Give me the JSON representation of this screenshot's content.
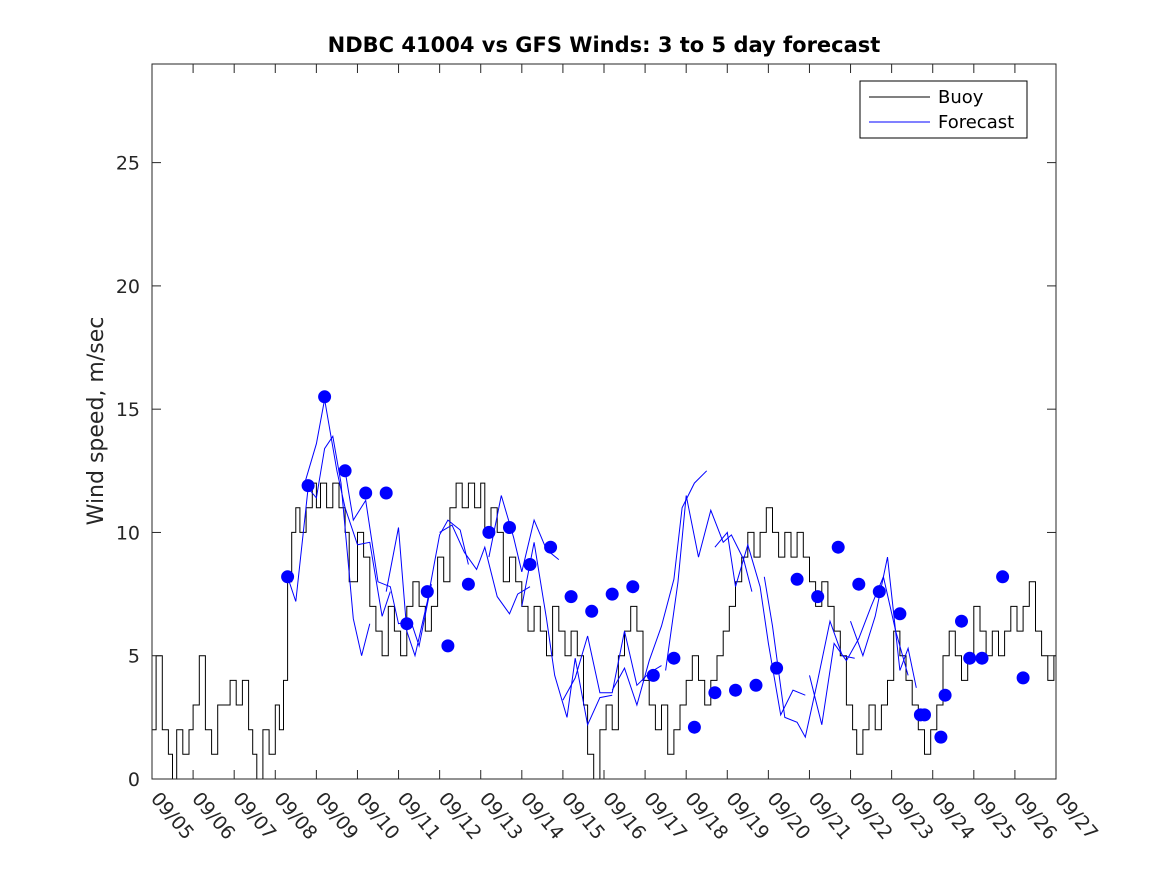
{
  "chart_data": {
    "type": "line",
    "title": "NDBC 41004 vs GFS Winds: 3 to 5 day forecast",
    "xlabel": "",
    "ylabel": "Wind speed, m/sec",
    "ylim": [
      0,
      29
    ],
    "xlim": [
      "09/05",
      "09/27"
    ],
    "x_ticks": [
      "09/05",
      "09/06",
      "09/07",
      "09/08",
      "09/09",
      "09/10",
      "09/11",
      "09/12",
      "09/13",
      "09/14",
      "09/15",
      "09/16",
      "09/17",
      "09/18",
      "09/19",
      "09/20",
      "09/21",
      "09/22",
      "09/23",
      "09/24",
      "09/25",
      "09/26",
      "09/27"
    ],
    "y_ticks": [
      0,
      5,
      10,
      15,
      20,
      25
    ],
    "grid": false,
    "legend_position": "top-right",
    "legend": [
      "Buoy",
      "Forecast"
    ],
    "colors": {
      "buoy": "#000000",
      "forecast": "#0000ff",
      "marker": "#0000ff"
    },
    "buoy": {
      "name": "Buoy",
      "points": [
        [
          0.0,
          2
        ],
        [
          0.1,
          5
        ],
        [
          0.25,
          2
        ],
        [
          0.4,
          1
        ],
        [
          0.5,
          0
        ],
        [
          0.6,
          2
        ],
        [
          0.75,
          1
        ],
        [
          0.9,
          2
        ],
        [
          1.0,
          3
        ],
        [
          1.15,
          5
        ],
        [
          1.3,
          2
        ],
        [
          1.45,
          1
        ],
        [
          1.6,
          3
        ],
        [
          1.75,
          3
        ],
        [
          1.9,
          4
        ],
        [
          2.05,
          3
        ],
        [
          2.2,
          4
        ],
        [
          2.35,
          2
        ],
        [
          2.45,
          1
        ],
        [
          2.55,
          0
        ],
        [
          2.7,
          2
        ],
        [
          2.85,
          1
        ],
        [
          3.0,
          3
        ],
        [
          3.1,
          2
        ],
        [
          3.2,
          4
        ],
        [
          3.3,
          8
        ],
        [
          3.4,
          10
        ],
        [
          3.5,
          11
        ],
        [
          3.6,
          10
        ],
        [
          3.75,
          11
        ],
        [
          3.9,
          12
        ],
        [
          4.0,
          11
        ],
        [
          4.1,
          12
        ],
        [
          4.25,
          11
        ],
        [
          4.4,
          12
        ],
        [
          4.55,
          11
        ],
        [
          4.7,
          10
        ],
        [
          4.8,
          8
        ],
        [
          5.0,
          10
        ],
        [
          5.15,
          9
        ],
        [
          5.3,
          7
        ],
        [
          5.45,
          6
        ],
        [
          5.6,
          5
        ],
        [
          5.75,
          7
        ],
        [
          5.9,
          6
        ],
        [
          6.05,
          5
        ],
        [
          6.2,
          7
        ],
        [
          6.35,
          8
        ],
        [
          6.5,
          7
        ],
        [
          6.65,
          6
        ],
        [
          6.8,
          7
        ],
        [
          6.95,
          9
        ],
        [
          7.1,
          8
        ],
        [
          7.25,
          11
        ],
        [
          7.4,
          12
        ],
        [
          7.55,
          11
        ],
        [
          7.7,
          12
        ],
        [
          7.85,
          11
        ],
        [
          8.0,
          12
        ],
        [
          8.1,
          10
        ],
        [
          8.25,
          11
        ],
        [
          8.4,
          10
        ],
        [
          8.55,
          8
        ],
        [
          8.7,
          9
        ],
        [
          8.85,
          8
        ],
        [
          9.0,
          7
        ],
        [
          9.15,
          6
        ],
        [
          9.3,
          7
        ],
        [
          9.45,
          6
        ],
        [
          9.6,
          5
        ],
        [
          9.75,
          7
        ],
        [
          9.9,
          6
        ],
        [
          10.05,
          5
        ],
        [
          10.2,
          6
        ],
        [
          10.35,
          5
        ],
        [
          10.5,
          3
        ],
        [
          10.6,
          1
        ],
        [
          10.75,
          0
        ],
        [
          10.9,
          2
        ],
        [
          11.05,
          3
        ],
        [
          11.2,
          2
        ],
        [
          11.35,
          5
        ],
        [
          11.5,
          6
        ],
        [
          11.65,
          7
        ],
        [
          11.8,
          6
        ],
        [
          11.95,
          4
        ],
        [
          12.1,
          3
        ],
        [
          12.25,
          2
        ],
        [
          12.4,
          3
        ],
        [
          12.55,
          1
        ],
        [
          12.7,
          2
        ],
        [
          12.85,
          3
        ],
        [
          13.0,
          4
        ],
        [
          13.15,
          5
        ],
        [
          13.3,
          4
        ],
        [
          13.45,
          3
        ],
        [
          13.6,
          4
        ],
        [
          13.75,
          5
        ],
        [
          13.9,
          6
        ],
        [
          14.05,
          7
        ],
        [
          14.2,
          8
        ],
        [
          14.35,
          9
        ],
        [
          14.5,
          10
        ],
        [
          14.65,
          9
        ],
        [
          14.8,
          10
        ],
        [
          14.95,
          11
        ],
        [
          15.1,
          10
        ],
        [
          15.25,
          9
        ],
        [
          15.4,
          10
        ],
        [
          15.55,
          9
        ],
        [
          15.7,
          10
        ],
        [
          15.85,
          9
        ],
        [
          16.0,
          8
        ],
        [
          16.15,
          7
        ],
        [
          16.3,
          8
        ],
        [
          16.45,
          7
        ],
        [
          16.6,
          6
        ],
        [
          16.75,
          5
        ],
        [
          16.9,
          3
        ],
        [
          17.05,
          2
        ],
        [
          17.15,
          1
        ],
        [
          17.3,
          2
        ],
        [
          17.45,
          3
        ],
        [
          17.6,
          2
        ],
        [
          17.75,
          3
        ],
        [
          17.9,
          4
        ],
        [
          18.05,
          6
        ],
        [
          18.2,
          5
        ],
        [
          18.35,
          4
        ],
        [
          18.5,
          3
        ],
        [
          18.65,
          2
        ],
        [
          18.8,
          1
        ],
        [
          18.95,
          2
        ],
        [
          19.1,
          3
        ],
        [
          19.25,
          5
        ],
        [
          19.4,
          6
        ],
        [
          19.55,
          5
        ],
        [
          19.7,
          4
        ],
        [
          19.85,
          5
        ],
        [
          20.0,
          7
        ],
        [
          20.15,
          6
        ],
        [
          20.3,
          5
        ],
        [
          20.45,
          6
        ],
        [
          20.6,
          5
        ],
        [
          20.75,
          6
        ],
        [
          20.9,
          7
        ],
        [
          21.05,
          6
        ],
        [
          21.2,
          7
        ],
        [
          21.35,
          8
        ],
        [
          21.5,
          6
        ],
        [
          21.65,
          5
        ],
        [
          21.8,
          4
        ],
        [
          21.95,
          5
        ],
        [
          22.0,
          5
        ]
      ]
    },
    "forecast_runs": [
      {
        "name": "Forecast",
        "points": [
          [
            3.3,
            8.2
          ],
          [
            3.5,
            7.2
          ],
          [
            3.8,
            11.8
          ],
          [
            4.0,
            11.4
          ],
          [
            4.2,
            13.4
          ],
          [
            4.4,
            13.9
          ],
          [
            4.6,
            12.0
          ],
          [
            4.9,
            6.5
          ],
          [
            5.1,
            5.0
          ],
          [
            5.3,
            6.3
          ]
        ]
      },
      {
        "name": "Forecast",
        "points": [
          [
            3.7,
            11.9
          ],
          [
            4.0,
            13.6
          ],
          [
            4.2,
            15.4
          ],
          [
            4.5,
            12.5
          ],
          [
            4.7,
            11.0
          ],
          [
            5.0,
            9.5
          ],
          [
            5.3,
            9.6
          ],
          [
            5.6,
            6.6
          ],
          [
            5.8,
            7.6
          ]
        ]
      },
      {
        "name": "Forecast",
        "points": [
          [
            4.7,
            12.5
          ],
          [
            4.9,
            10.5
          ],
          [
            5.2,
            11.3
          ],
          [
            5.5,
            8.0
          ],
          [
            5.8,
            7.8
          ],
          [
            6.0,
            6.3
          ],
          [
            6.3,
            6.4
          ],
          [
            6.5,
            5.4
          ],
          [
            6.8,
            7.9
          ]
        ]
      },
      {
        "name": "Forecast",
        "points": [
          [
            5.7,
            7.6
          ],
          [
            6.0,
            10.2
          ],
          [
            6.2,
            6.0
          ],
          [
            6.4,
            5.0
          ],
          [
            6.7,
            7.2
          ],
          [
            7.0,
            9.9
          ],
          [
            7.2,
            10.5
          ],
          [
            7.5,
            10.1
          ],
          [
            7.7,
            8.7
          ]
        ]
      },
      {
        "name": "Forecast",
        "points": [
          [
            7.0,
            10.0
          ],
          [
            7.3,
            10.3
          ],
          [
            7.6,
            9.2
          ],
          [
            7.9,
            8.5
          ],
          [
            8.1,
            9.4
          ],
          [
            8.4,
            7.4
          ],
          [
            8.7,
            6.7
          ],
          [
            8.9,
            7.5
          ],
          [
            9.2,
            7.8
          ]
        ]
      },
      {
        "name": "Forecast",
        "points": [
          [
            8.2,
            9.0
          ],
          [
            8.5,
            11.5
          ],
          [
            8.8,
            9.8
          ],
          [
            9.0,
            8.4
          ],
          [
            9.3,
            10.5
          ],
          [
            9.6,
            9.3
          ],
          [
            9.9,
            8.9
          ]
        ]
      },
      {
        "name": "Forecast",
        "points": [
          [
            9.0,
            7.0
          ],
          [
            9.3,
            9.6
          ],
          [
            9.6,
            6.5
          ],
          [
            9.8,
            4.2
          ],
          [
            10.1,
            2.5
          ],
          [
            10.3,
            4.9
          ],
          [
            10.6,
            2.2
          ],
          [
            10.9,
            3.3
          ],
          [
            11.2,
            3.4
          ]
        ]
      },
      {
        "name": "Forecast",
        "points": [
          [
            10.0,
            3.2
          ],
          [
            10.3,
            4.1
          ],
          [
            10.6,
            5.8
          ],
          [
            10.9,
            3.5
          ],
          [
            11.2,
            3.5
          ],
          [
            11.5,
            6.0
          ],
          [
            11.8,
            3.8
          ],
          [
            12.1,
            4.3
          ],
          [
            12.4,
            4.6
          ]
        ]
      },
      {
        "name": "Forecast",
        "points": [
          [
            11.2,
            3.6
          ],
          [
            11.5,
            4.5
          ],
          [
            11.8,
            3.0
          ],
          [
            12.1,
            4.8
          ],
          [
            12.4,
            6.2
          ],
          [
            12.7,
            8.1
          ],
          [
            12.9,
            11.0
          ],
          [
            13.2,
            12.0
          ],
          [
            13.5,
            12.5
          ]
        ]
      },
      {
        "name": "Forecast",
        "points": [
          [
            12.5,
            4.4
          ],
          [
            12.8,
            8.0
          ],
          [
            13.0,
            11.5
          ],
          [
            13.3,
            9.0
          ],
          [
            13.6,
            10.9
          ],
          [
            13.9,
            9.6
          ],
          [
            14.1,
            9.9
          ],
          [
            14.4,
            8.9
          ],
          [
            14.6,
            7.6
          ]
        ]
      },
      {
        "name": "Forecast",
        "points": [
          [
            13.7,
            9.4
          ],
          [
            14.0,
            10.0
          ],
          [
            14.2,
            7.8
          ],
          [
            14.5,
            9.5
          ],
          [
            14.8,
            7.8
          ],
          [
            15.0,
            5.5
          ],
          [
            15.3,
            2.6
          ],
          [
            15.6,
            3.6
          ],
          [
            15.9,
            3.4
          ]
        ]
      },
      {
        "name": "Forecast",
        "points": [
          [
            14.9,
            8.2
          ],
          [
            15.1,
            6.2
          ],
          [
            15.4,
            2.5
          ],
          [
            15.7,
            2.3
          ],
          [
            15.9,
            1.7
          ],
          [
            16.2,
            4.0
          ],
          [
            16.5,
            6.4
          ],
          [
            16.8,
            5.0
          ],
          [
            17.1,
            4.9
          ]
        ]
      },
      {
        "name": "Forecast",
        "points": [
          [
            16.0,
            4.2
          ],
          [
            16.3,
            2.2
          ],
          [
            16.6,
            5.5
          ],
          [
            16.9,
            4.8
          ],
          [
            17.2,
            5.7
          ],
          [
            17.5,
            7.0
          ],
          [
            17.8,
            8.2
          ],
          [
            18.1,
            6.0
          ],
          [
            18.4,
            4.2
          ]
        ]
      },
      {
        "name": "Forecast",
        "points": [
          [
            17.0,
            6.4
          ],
          [
            17.3,
            5.0
          ],
          [
            17.6,
            6.6
          ],
          [
            17.9,
            9.0
          ],
          [
            18.2,
            4.4
          ],
          [
            18.4,
            5.3
          ],
          [
            18.6,
            3.7
          ]
        ]
      }
    ],
    "forecast_markers": [
      [
        3.3,
        8.2
      ],
      [
        3.8,
        11.9
      ],
      [
        4.2,
        15.5
      ],
      [
        4.7,
        12.5
      ],
      [
        5.2,
        11.6
      ],
      [
        5.7,
        11.6
      ],
      [
        6.2,
        6.3
      ],
      [
        6.7,
        7.6
      ],
      [
        7.2,
        5.4
      ],
      [
        7.7,
        7.9
      ],
      [
        8.2,
        10.0
      ],
      [
        8.7,
        10.2
      ],
      [
        9.2,
        8.7
      ],
      [
        9.7,
        9.4
      ],
      [
        10.2,
        7.4
      ],
      [
        10.7,
        6.8
      ],
      [
        11.2,
        7.5
      ],
      [
        11.7,
        7.8
      ],
      [
        12.2,
        4.2
      ],
      [
        12.7,
        4.9
      ],
      [
        13.2,
        2.1
      ],
      [
        13.7,
        3.5
      ],
      [
        14.2,
        3.6
      ],
      [
        14.7,
        3.8
      ],
      [
        15.2,
        4.5
      ],
      [
        15.7,
        8.1
      ],
      [
        16.2,
        7.4
      ],
      [
        16.7,
        9.4
      ],
      [
        17.2,
        7.9
      ],
      [
        17.7,
        7.6
      ],
      [
        18.2,
        6.7
      ],
      [
        18.7,
        2.6
      ],
      [
        18.8,
        2.6
      ],
      [
        19.2,
        1.7
      ],
      [
        19.3,
        3.4
      ],
      [
        19.7,
        6.4
      ],
      [
        19.9,
        4.9
      ],
      [
        20.2,
        4.9
      ],
      [
        20.7,
        8.2
      ],
      [
        21.2,
        4.1
      ]
    ]
  }
}
